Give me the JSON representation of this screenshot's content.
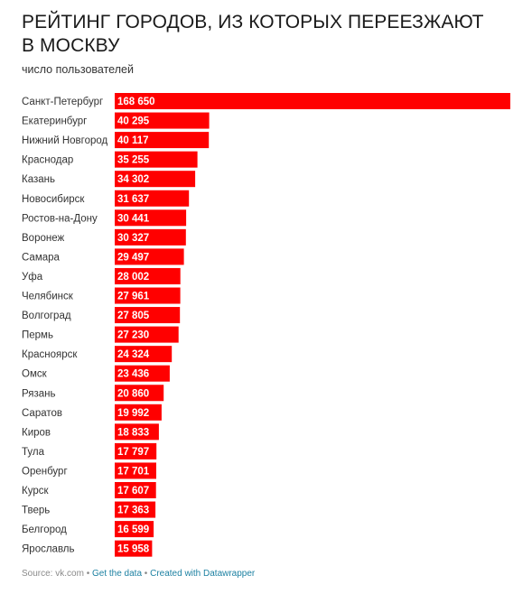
{
  "header": {
    "title": "РЕЙТИНГ ГОРОДОВ, ИЗ КОТОРЫХ ПЕРЕЕЗЖАЮТ В МОСКВУ",
    "subtitle": "число пользователей"
  },
  "footer": {
    "source": "Source: vk.com",
    "sep1": " • ",
    "get_data": "Get the data",
    "sep2": " • ",
    "created": "Created with Datawrapper"
  },
  "colors": {
    "bar": "#ff0000",
    "label": "#ffffff",
    "text": "#333333"
  },
  "chart_data": {
    "type": "bar",
    "orientation": "horizontal",
    "title": "РЕЙТИНГ ГОРОДОВ, ИЗ КОТОРЫХ ПЕРЕЕЗЖАЮТ В МОСКВУ",
    "subtitle": "число пользователей",
    "categories": [
      "Санкт-Петербург",
      "Екатеринбург",
      "Нижний Новгород",
      "Краснодар",
      "Казань",
      "Новосибирск",
      "Ростов-на-Дону",
      "Воронеж",
      "Самара",
      "Уфа",
      "Челябинск",
      "Волгоград",
      "Пермь",
      "Красноярск",
      "Омск",
      "Рязань",
      "Саратов",
      "Киров",
      "Тула",
      "Оренбург",
      "Курск",
      "Тверь",
      "Белгород",
      "Ярославль"
    ],
    "values": [
      168650,
      40295,
      40117,
      35255,
      34302,
      31637,
      30441,
      30327,
      29497,
      28002,
      27961,
      27805,
      27230,
      24324,
      23436,
      20860,
      19992,
      18833,
      17797,
      17701,
      17607,
      17363,
      16599,
      15958
    ],
    "value_labels": [
      "168 650",
      "40 295",
      "40 117",
      "35 255",
      "34 302",
      "31 637",
      "30 441",
      "30 327",
      "29 497",
      "28 002",
      "27 961",
      "27 805",
      "27 230",
      "24 324",
      "23 436",
      "20 860",
      "19 992",
      "18 833",
      "17 797",
      "17 701",
      "17 607",
      "17 363",
      "16 599",
      "15 958"
    ],
    "xlim": [
      0,
      168650
    ],
    "grid": false,
    "legend": "none"
  }
}
